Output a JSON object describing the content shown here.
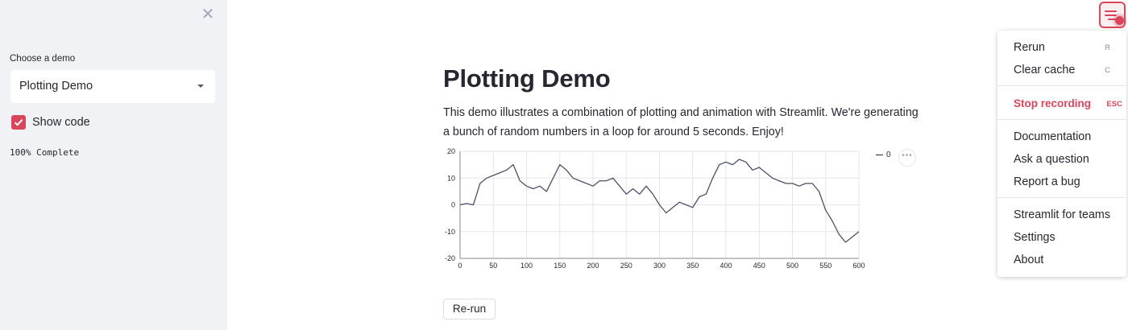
{
  "sidebar": {
    "close_icon": "close-icon",
    "select_label": "Choose a demo",
    "select_value": "Plotting Demo",
    "checkbox_label": "Show code",
    "checkbox_checked": true,
    "progress_text": "100% Complete"
  },
  "main": {
    "title": "Plotting Demo",
    "description": "This demo illustrates a combination of plotting and animation with Streamlit. We're generating a bunch of random numbers in a loop for around 5 seconds. Enjoy!",
    "rerun_label": "Re-run",
    "chart_actions_label": "•••"
  },
  "menu": {
    "items": [
      {
        "label": "Rerun",
        "shortcut": "R"
      },
      {
        "label": "Clear cache",
        "shortcut": "C"
      },
      {
        "label": "Stop recording",
        "shortcut": "ESC"
      },
      {
        "label": "Documentation"
      },
      {
        "label": "Ask a question"
      },
      {
        "label": "Report a bug"
      },
      {
        "label": "Streamlit for teams"
      },
      {
        "label": "Settings"
      },
      {
        "label": "About"
      }
    ]
  },
  "colors": {
    "accent": "#d9465b",
    "sidebar_bg": "#f0f2f6",
    "line": "#4c5266"
  },
  "chart_data": {
    "type": "line",
    "xlim": [
      0,
      600
    ],
    "ylim": [
      -20,
      20
    ],
    "xticks": [
      0,
      50,
      100,
      150,
      200,
      250,
      300,
      350,
      400,
      450,
      500,
      550,
      600
    ],
    "yticks": [
      20,
      10,
      0,
      -10,
      -20
    ],
    "grid": true,
    "legend_position": "right",
    "series": [
      {
        "name": "0",
        "x": [
          0,
          10,
          20,
          30,
          40,
          50,
          60,
          70,
          80,
          90,
          100,
          110,
          120,
          130,
          140,
          150,
          160,
          170,
          180,
          190,
          200,
          210,
          220,
          230,
          240,
          250,
          260,
          270,
          280,
          290,
          300,
          310,
          320,
          330,
          340,
          350,
          360,
          370,
          380,
          390,
          400,
          410,
          420,
          430,
          440,
          450,
          460,
          470,
          480,
          490,
          500,
          510,
          520,
          530,
          540,
          550,
          560,
          570,
          580,
          590,
          600
        ],
        "y": [
          0,
          0.5,
          0,
          8,
          10,
          11,
          12,
          13,
          15,
          9,
          7,
          6,
          7,
          5,
          10,
          15,
          13,
          10,
          9,
          8,
          7,
          9,
          9,
          10,
          7,
          4,
          6,
          4,
          7,
          4,
          0,
          -3,
          -1,
          1,
          0,
          -1,
          3,
          4,
          10,
          15,
          16,
          15,
          17,
          16,
          13,
          14,
          12,
          10,
          9,
          8,
          8,
          7,
          8,
          8,
          5,
          -2,
          -6,
          -11,
          -14,
          -12,
          -10
        ]
      }
    ]
  }
}
